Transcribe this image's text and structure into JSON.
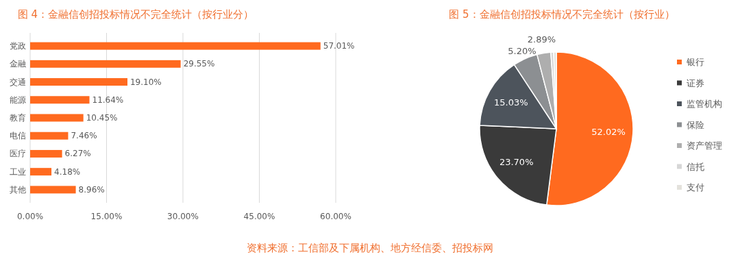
{
  "chart_data": [
    {
      "type": "bar",
      "title": "图 4：金融信创招投标情况不完全统计（按行业分）",
      "orientation": "horizontal",
      "categories": [
        "党政",
        "金融",
        "交通",
        "能源",
        "教育",
        "电信",
        "医疗",
        "工业",
        "其他"
      ],
      "values": [
        57.01,
        29.55,
        19.1,
        11.64,
        10.45,
        7.46,
        6.27,
        4.18,
        8.96
      ],
      "value_labels": [
        "57.01%",
        "29.55%",
        "19.10%",
        "11.64%",
        "10.45%",
        "7.46%",
        "6.27%",
        "4.18%",
        "8.96%"
      ],
      "color": "#ff6a1f",
      "xlim": [
        0,
        60
      ],
      "xticks": [
        {
          "value": 0,
          "label": "0.00%"
        },
        {
          "value": 15,
          "label": "15.00%"
        },
        {
          "value": 30,
          "label": "30.00%"
        },
        {
          "value": 45,
          "label": "45.00%"
        },
        {
          "value": 60,
          "label": "60.00%"
        }
      ],
      "grid": "x",
      "annotations": [
        "资料来源：工信部及下属机构、地方经信委、招投标网"
      ]
    },
    {
      "type": "pie",
      "title": "图 5：金融信创招投标情况不完全统计（按行业）",
      "categories": [
        "银行",
        "证券",
        "监管机构",
        "保险",
        "资产管理",
        "信托",
        "支付"
      ],
      "values": [
        52.02,
        23.7,
        15.03,
        5.2,
        2.89,
        0.6,
        0.56
      ],
      "value_labels": [
        "52.02%",
        "23.70%",
        "15.03%",
        "5.20%",
        "2.89%",
        null,
        null
      ],
      "colors": [
        "#ff6a1f",
        "#3a3a3a",
        "#4d545c",
        "#8c8f92",
        "#aeaeae",
        "#d6d6d6",
        "#e4e2dc"
      ],
      "legend": "right"
    }
  ]
}
